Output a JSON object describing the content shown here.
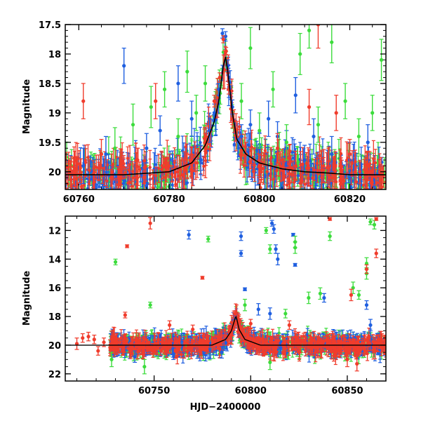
{
  "chart_data": [
    {
      "type": "scatter",
      "panel": "top",
      "title": "",
      "xlabel": "",
      "ylabel": "Magnitude",
      "xlim": [
        60757,
        60828
      ],
      "ylim": [
        20.3,
        17.5
      ],
      "y_inverted": true,
      "xticks": [
        60760,
        60780,
        60800,
        60820
      ],
      "yticks": [
        17.5,
        18,
        18.5,
        19,
        19.5,
        20
      ],
      "ytick_labels": [
        "17.5",
        "18",
        "18.5",
        "19",
        "19.5",
        "20"
      ],
      "grid": false,
      "legend": "none",
      "colors": {
        "blue": "#1f5fe0",
        "green": "#3cdc3c",
        "red": "#f03c2c",
        "model": "#000000"
      },
      "model_curve": {
        "x": [
          60757,
          60770,
          60780,
          60785,
          60788,
          60790,
          60791,
          60792,
          60792.5,
          60793,
          60794,
          60795,
          60797,
          60800,
          60805,
          60810,
          60815,
          60820,
          60828
        ],
        "y": [
          20.05,
          20.05,
          20.0,
          19.85,
          19.55,
          19.15,
          18.8,
          18.2,
          18.05,
          18.3,
          19.0,
          19.45,
          19.7,
          19.85,
          19.95,
          20.0,
          20.02,
          20.05,
          20.05
        ]
      },
      "series": [
        {
          "name": "",
          "color": "blue",
          "points": [
            {
              "x": 60761,
              "y": 19.9,
              "e": 0.3
            },
            {
              "x": 60766,
              "y": 19.7,
              "e": 0.3
            },
            {
              "x": 60770,
              "y": 18.2,
              "e": 0.3
            },
            {
              "x": 60775,
              "y": 19.6,
              "e": 0.25
            },
            {
              "x": 60778,
              "y": 19.3,
              "e": 0.25
            },
            {
              "x": 60782,
              "y": 18.5,
              "e": 0.3
            },
            {
              "x": 60785,
              "y": 19.1,
              "e": 0.3
            },
            {
              "x": 60787,
              "y": 19.8,
              "e": 0.25
            },
            {
              "x": 60789,
              "y": 19.3,
              "e": 0.2
            },
            {
              "x": 60790,
              "y": 19.0,
              "e": 0.15
            },
            {
              "x": 60791,
              "y": 18.6,
              "e": 0.1
            },
            {
              "x": 60791.8,
              "y": 17.65,
              "e": 0.08
            },
            {
              "x": 60792.5,
              "y": 17.7,
              "e": 0.08
            },
            {
              "x": 60793,
              "y": 18.2,
              "e": 0.1
            },
            {
              "x": 60794,
              "y": 18.9,
              "e": 0.12
            },
            {
              "x": 60796,
              "y": 19.4,
              "e": 0.2
            },
            {
              "x": 60798,
              "y": 19.2,
              "e": 0.25
            },
            {
              "x": 60800,
              "y": 19.6,
              "e": 0.25
            },
            {
              "x": 60802,
              "y": 19.1,
              "e": 0.3
            },
            {
              "x": 60804,
              "y": 19.4,
              "e": 0.25
            },
            {
              "x": 60806,
              "y": 19.6,
              "e": 0.3
            },
            {
              "x": 60808,
              "y": 18.7,
              "e": 0.3
            },
            {
              "x": 60810,
              "y": 19.8,
              "e": 0.25
            },
            {
              "x": 60812,
              "y": 19.4,
              "e": 0.3
            },
            {
              "x": 60816,
              "y": 19.7,
              "e": 0.3
            },
            {
              "x": 60820,
              "y": 19.8,
              "e": 0.3
            },
            {
              "x": 60824,
              "y": 19.5,
              "e": 0.3
            }
          ]
        },
        {
          "name": "",
          "color": "green",
          "points": [
            {
              "x": 60768,
              "y": 19.6,
              "e": 0.35
            },
            {
              "x": 60772,
              "y": 19.2,
              "e": 0.35
            },
            {
              "x": 60776,
              "y": 18.9,
              "e": 0.35
            },
            {
              "x": 60779,
              "y": 18.6,
              "e": 0.3
            },
            {
              "x": 60782,
              "y": 19.4,
              "e": 0.3
            },
            {
              "x": 60784,
              "y": 18.3,
              "e": 0.35
            },
            {
              "x": 60786,
              "y": 19.0,
              "e": 0.3
            },
            {
              "x": 60788,
              "y": 18.5,
              "e": 0.3
            },
            {
              "x": 60796,
              "y": 18.8,
              "e": 0.3
            },
            {
              "x": 60798,
              "y": 17.9,
              "e": 0.35
            },
            {
              "x": 60800,
              "y": 19.3,
              "e": 0.3
            },
            {
              "x": 60803,
              "y": 18.6,
              "e": 0.3
            },
            {
              "x": 60806,
              "y": 19.5,
              "e": 0.3
            },
            {
              "x": 60809,
              "y": 18.0,
              "e": 0.35
            },
            {
              "x": 60811,
              "y": 17.6,
              "e": 0.3
            },
            {
              "x": 60813,
              "y": 19.2,
              "e": 0.3
            },
            {
              "x": 60816,
              "y": 17.8,
              "e": 0.35
            },
            {
              "x": 60819,
              "y": 18.8,
              "e": 0.3
            },
            {
              "x": 60822,
              "y": 19.4,
              "e": 0.3
            },
            {
              "x": 60825,
              "y": 19.0,
              "e": 0.3
            },
            {
              "x": 60827,
              "y": 18.1,
              "e": 0.35
            }
          ]
        },
        {
          "name": "",
          "color": "red",
          "points": [
            {
              "x": 60759,
              "y": 20.0,
              "e": 0.25
            },
            {
              "x": 60761,
              "y": 18.8,
              "e": 0.3
            },
            {
              "x": 60765,
              "y": 19.7,
              "e": 0.25
            },
            {
              "x": 60769,
              "y": 20.0,
              "e": 0.25
            },
            {
              "x": 60773,
              "y": 19.8,
              "e": 0.2
            },
            {
              "x": 60777,
              "y": 18.8,
              "e": 0.3
            },
            {
              "x": 60780,
              "y": 19.9,
              "e": 0.2
            },
            {
              "x": 60784,
              "y": 19.9,
              "e": 0.2
            },
            {
              "x": 60788,
              "y": 19.5,
              "e": 0.15
            },
            {
              "x": 60790,
              "y": 18.8,
              "e": 0.1
            },
            {
              "x": 60791.2,
              "y": 18.4,
              "e": 0.08
            },
            {
              "x": 60792,
              "y": 17.75,
              "e": 0.06
            },
            {
              "x": 60792.6,
              "y": 17.95,
              "e": 0.06
            },
            {
              "x": 60793.2,
              "y": 18.6,
              "e": 0.08
            },
            {
              "x": 60794,
              "y": 19.1,
              "e": 0.1
            },
            {
              "x": 60797,
              "y": 19.7,
              "e": 0.2
            },
            {
              "x": 60800,
              "y": 19.9,
              "e": 0.2
            },
            {
              "x": 60804,
              "y": 19.6,
              "e": 0.25
            },
            {
              "x": 60808,
              "y": 19.9,
              "e": 0.25
            },
            {
              "x": 60811,
              "y": 18.9,
              "e": 0.3
            },
            {
              "x": 60813,
              "y": 17.5,
              "e": 0.4
            },
            {
              "x": 60817,
              "y": 19.0,
              "e": 0.3
            },
            {
              "x": 60820,
              "y": 19.7,
              "e": 0.25
            },
            {
              "x": 60824,
              "y": 19.9,
              "e": 0.25
            }
          ]
        }
      ]
    },
    {
      "type": "scatter",
      "panel": "bottom",
      "title": "",
      "xlabel": "HJD−2400000",
      "ylabel": "Magnitude",
      "xlim": [
        60704,
        60870
      ],
      "ylim": [
        22.5,
        11
      ],
      "y_inverted": true,
      "xticks": [
        60750,
        60800,
        60850
      ],
      "yticks": [
        12,
        14,
        16,
        18,
        20,
        22
      ],
      "grid": false,
      "legend": "none",
      "colors": {
        "blue": "#1f5fe0",
        "green": "#3cdc3c",
        "red": "#f03c2c",
        "model": "#000000"
      },
      "model_curve": {
        "x": [
          60704,
          60780,
          60787,
          60790,
          60792,
          60792.5,
          60794,
          60797,
          60805,
          60870
        ],
        "y": [
          20.0,
          20.0,
          19.6,
          19.0,
          18.1,
          18.0,
          18.9,
          19.6,
          20.0,
          20.0
        ]
      },
      "series": [
        {
          "name": "",
          "color": "blue",
          "points": [
            {
              "x": 60768,
              "y": 12.3,
              "e": 0.3
            },
            {
              "x": 60795,
              "y": 12.4,
              "e": 0.3
            },
            {
              "x": 60795,
              "y": 13.6,
              "e": 0.2
            },
            {
              "x": 60811,
              "y": 11.5,
              "e": 0.2
            },
            {
              "x": 60812,
              "y": 11.9,
              "e": 0.3
            },
            {
              "x": 60813,
              "y": 13.3,
              "e": 0.3
            },
            {
              "x": 60814,
              "y": 14.0,
              "e": 0.4
            },
            {
              "x": 60822,
              "y": 12.3,
              "e": 0.1
            },
            {
              "x": 60823,
              "y": 14.4,
              "e": 0.1
            },
            {
              "x": 60797,
              "y": 16.1,
              "e": 0.1
            },
            {
              "x": 60804,
              "y": 17.5,
              "e": 0.4
            },
            {
              "x": 60810,
              "y": 17.8,
              "e": 0.4
            },
            {
              "x": 60838,
              "y": 16.7,
              "e": 0.3
            },
            {
              "x": 60860,
              "y": 17.2,
              "e": 0.3
            },
            {
              "x": 60862,
              "y": 18.6,
              "e": 0.4
            },
            {
              "x": 60740,
              "y": 20.8,
              "e": 0.4
            },
            {
              "x": 60760,
              "y": 20.6,
              "e": 0.4
            },
            {
              "x": 60785,
              "y": 20.5,
              "e": 0.4
            },
            {
              "x": 60792,
              "y": 18.0,
              "e": 0.2
            }
          ]
        },
        {
          "name": "",
          "color": "green",
          "points": [
            {
              "x": 60730,
              "y": 14.2,
              "e": 0.2
            },
            {
              "x": 60748,
              "y": 17.2,
              "e": 0.2
            },
            {
              "x": 60778,
              "y": 12.6,
              "e": 0.2
            },
            {
              "x": 60808,
              "y": 12.0,
              "e": 0.2
            },
            {
              "x": 60810,
              "y": 13.3,
              "e": 0.3
            },
            {
              "x": 60823,
              "y": 12.8,
              "e": 0.4
            },
            {
              "x": 60823,
              "y": 13.2,
              "e": 0.4
            },
            {
              "x": 60841,
              "y": 12.4,
              "e": 0.3
            },
            {
              "x": 60862,
              "y": 11.4,
              "e": 0.2
            },
            {
              "x": 60864,
              "y": 11.6,
              "e": 0.3
            },
            {
              "x": 60860,
              "y": 14.3,
              "e": 0.4
            },
            {
              "x": 60860,
              "y": 15.0,
              "e": 0.4
            },
            {
              "x": 60830,
              "y": 16.7,
              "e": 0.4
            },
            {
              "x": 60836,
              "y": 16.4,
              "e": 0.4
            },
            {
              "x": 60853,
              "y": 16.0,
              "e": 0.4
            },
            {
              "x": 60856,
              "y": 16.5,
              "e": 0.3
            },
            {
              "x": 60797,
              "y": 17.2,
              "e": 0.4
            },
            {
              "x": 60818,
              "y": 17.8,
              "e": 0.3
            },
            {
              "x": 60728,
              "y": 21.0,
              "e": 0.5
            },
            {
              "x": 60745,
              "y": 21.5,
              "e": 0.5
            },
            {
              "x": 60810,
              "y": 21.2,
              "e": 0.5
            }
          ]
        },
        {
          "name": "",
          "color": "red",
          "points": [
            {
              "x": 60710,
              "y": 19.9,
              "e": 0.4
            },
            {
              "x": 60713,
              "y": 19.5,
              "e": 0.3
            },
            {
              "x": 60716,
              "y": 19.4,
              "e": 0.3
            },
            {
              "x": 60719,
              "y": 19.6,
              "e": 0.3
            },
            {
              "x": 60721,
              "y": 20.4,
              "e": 0.3
            },
            {
              "x": 60724,
              "y": 19.8,
              "e": 0.3
            },
            {
              "x": 60735,
              "y": 17.9,
              "e": 0.2
            },
            {
              "x": 60736,
              "y": 13.1,
              "e": 0.1
            },
            {
              "x": 60748,
              "y": 11.5,
              "e": 0.4
            },
            {
              "x": 60775,
              "y": 15.3,
              "e": 0.1
            },
            {
              "x": 60758,
              "y": 18.6,
              "e": 0.3
            },
            {
              "x": 60770,
              "y": 18.9,
              "e": 0.3
            },
            {
              "x": 60841,
              "y": 11.2,
              "e": 0.1
            },
            {
              "x": 60865,
              "y": 11.2,
              "e": 0.1
            },
            {
              "x": 60860,
              "y": 14.7,
              "e": 0.3
            },
            {
              "x": 60865,
              "y": 13.6,
              "e": 0.3
            },
            {
              "x": 60852,
              "y": 16.5,
              "e": 0.4
            },
            {
              "x": 60800,
              "y": 18.5,
              "e": 0.3
            },
            {
              "x": 60792,
              "y": 17.8,
              "e": 0.2
            },
            {
              "x": 60820,
              "y": 18.6,
              "e": 0.3
            },
            {
              "x": 60850,
              "y": 21.0,
              "e": 0.5
            },
            {
              "x": 60855,
              "y": 21.3,
              "e": 0.5
            }
          ]
        }
      ]
    }
  ]
}
